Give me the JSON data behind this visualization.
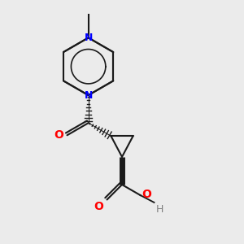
{
  "bg_color": "#ebebeb",
  "bond_color": "#1a1a1a",
  "N_color": "#0000ff",
  "O_color": "#ff0000",
  "H_color": "#808080",
  "lw": 1.5,
  "bold_lw": 5.0,
  "xlim": [
    -3.2,
    3.5
  ],
  "ylim": [
    -4.2,
    3.2
  ]
}
